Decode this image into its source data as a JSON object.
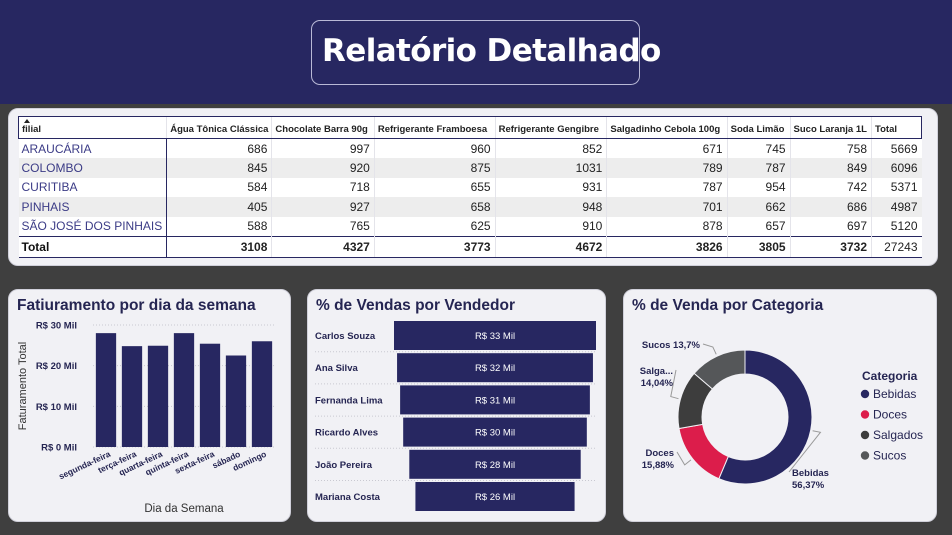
{
  "header": {
    "title": "Relatório Detalhado"
  },
  "table": {
    "row_header": "filial",
    "columns": [
      "Água Tônica Clássica",
      "Chocolate Barra 90g",
      "Refrigerante Framboesa",
      "Refrigerante Gengibre",
      "Salgadinho Cebola 100g",
      "Soda Limão",
      "Suco Laranja 1L",
      "Total"
    ],
    "rows": [
      {
        "label": "ARAUCÁRIA",
        "values": [
          "686",
          "997",
          "960",
          "852",
          "671",
          "745",
          "758",
          "5669"
        ]
      },
      {
        "label": "COLOMBO",
        "values": [
          "845",
          "920",
          "875",
          "1031",
          "789",
          "787",
          "849",
          "6096"
        ]
      },
      {
        "label": "CURITIBA",
        "values": [
          "584",
          "718",
          "655",
          "931",
          "787",
          "954",
          "742",
          "5371"
        ]
      },
      {
        "label": "PINHAIS",
        "values": [
          "405",
          "927",
          "658",
          "948",
          "701",
          "662",
          "686",
          "4987"
        ]
      },
      {
        "label": "SÃO JOSÉ DOS PINHAIS",
        "values": [
          "588",
          "765",
          "625",
          "910",
          "878",
          "657",
          "697",
          "5120"
        ]
      }
    ],
    "total": {
      "label": "Total",
      "values": [
        "3108",
        "4327",
        "3773",
        "4672",
        "3826",
        "3805",
        "3732",
        "27243"
      ]
    }
  },
  "chart_data": [
    {
      "type": "bar",
      "title": "Fatiuramento por dia da semana",
      "xlabel": "Dia da Semana",
      "ylabel": "Faturamento Total",
      "ylim": [
        0,
        30000
      ],
      "yticks": [
        0,
        10000,
        20000,
        30000
      ],
      "ytick_labels": [
        "R$ 0 Mil",
        "R$ 10 Mil",
        "R$ 20 Mil",
        "R$ 30 Mil"
      ],
      "categories": [
        "segunda-feira",
        "terça-feira",
        "quarta-feira",
        "quinta-feira",
        "sexta-feira",
        "sábado",
        "domingo"
      ],
      "values": [
        28000,
        24800,
        24900,
        28000,
        25400,
        22500,
        26000
      ],
      "grid": true,
      "color": "#272761"
    },
    {
      "type": "bar",
      "orientation": "horizontal",
      "title": "% de Vendas por Vendedor",
      "categories": [
        "Carlos Souza",
        "Ana Silva",
        "Fernanda Lima",
        "Ricardo Alves",
        "João Pereira",
        "Mariana Costa"
      ],
      "values": [
        33,
        32,
        31,
        30,
        28,
        26
      ],
      "value_labels": [
        "R$ 33 Mil",
        "R$ 32 Mil",
        "R$ 31 Mil",
        "R$ 30 Mil",
        "R$ 28 Mil",
        "R$ 26 Mil"
      ],
      "color": "#272761"
    },
    {
      "type": "pie",
      "donut": true,
      "title": "% de Venda por Categoria",
      "legend_title": "Categoria",
      "legend_position": "right",
      "slices": [
        {
          "name": "Bebidas",
          "value": 56.37,
          "color": "#272761",
          "label": [
            "Bebidas",
            "56,37%"
          ]
        },
        {
          "name": "Doces",
          "value": 15.88,
          "color": "#dc1d4b",
          "label": [
            "Doces",
            "15,88%"
          ]
        },
        {
          "name": "Salgados",
          "value": 14.04,
          "color": "#3d3d3d",
          "label": [
            "Salga...",
            "14,04%"
          ]
        },
        {
          "name": "Sucos",
          "value": 13.7,
          "color": "#555759",
          "label": [
            "Sucos 13,7%"
          ]
        }
      ]
    }
  ]
}
